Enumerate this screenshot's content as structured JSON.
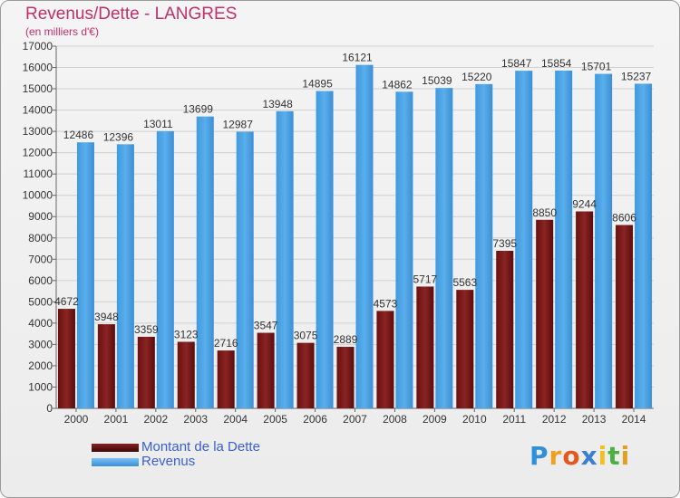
{
  "header": {
    "title": "Revenus/Dette - LANGRES",
    "subtitle": "(en milliers d'€)"
  },
  "chart_data": {
    "type": "bar",
    "categories": [
      "2000",
      "2001",
      "2002",
      "2003",
      "2004",
      "2005",
      "2006",
      "2007",
      "2008",
      "2009",
      "2010",
      "2011",
      "2012",
      "2013",
      "2014"
    ],
    "series": [
      {
        "name": "Montant de la Dette",
        "color": "#7a1a1a",
        "values": [
          4672,
          3948,
          3359,
          3123,
          2716,
          3547,
          3075,
          2889,
          4573,
          5717,
          5563,
          7395,
          8850,
          9244,
          8606
        ],
        "labels": [
          "4672",
          "3948",
          "3359",
          "3123",
          "2716",
          "3547",
          "3075",
          "2889",
          "4573",
          "5717",
          "5563",
          "7395",
          "8850",
          "9244",
          "8606"
        ]
      },
      {
        "name": "Revenus",
        "color": "#4aa3e6",
        "values": [
          12486,
          12396,
          13011,
          13699,
          12987,
          13948,
          14895,
          16121,
          14862,
          15039,
          15220,
          15847,
          15854,
          15701,
          15237
        ],
        "labels": [
          "12486",
          "12396",
          "13011",
          "13699",
          "12987",
          "13948",
          "14895",
          "16121",
          "14862",
          "15039",
          "15220",
          "15847",
          "15854",
          "15701",
          "15237"
        ]
      }
    ],
    "ylim": [
      0,
      17000
    ],
    "yticks": [
      "0",
      "1000",
      "2000",
      "3000",
      "4000",
      "5000",
      "6000",
      "7000",
      "8000",
      "9000",
      "10000",
      "11000",
      "12000",
      "13000",
      "14000",
      "15000",
      "16000",
      "17000"
    ],
    "grid": true,
    "legend_position": "bottom-left"
  },
  "legend": {
    "debt_label": "Montant de la Dette",
    "revenue_label": "Revenus",
    "debt_color": "#5a1010",
    "revenue_color": "#4aa3e6"
  },
  "logo": {
    "letters": [
      "P",
      "r",
      "o",
      "x",
      "i",
      "t",
      "i"
    ],
    "colors": [
      "#2f8fd8",
      "#f0a020",
      "#e05a20",
      "#3a7fd0",
      "#f0c020",
      "#4ab040",
      "#e0a020"
    ]
  }
}
